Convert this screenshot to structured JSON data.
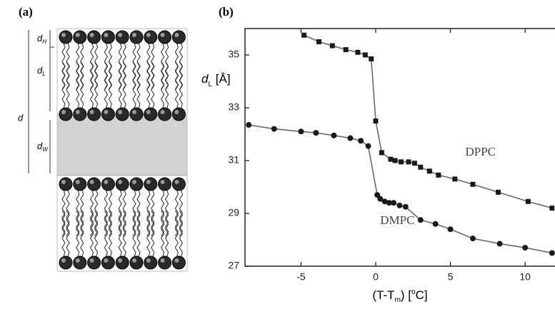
{
  "panel_a": {
    "label": "(a)",
    "d_h": {
      "main": "d",
      "sub": "H"
    },
    "d_l": {
      "main": "d",
      "sub": "L"
    },
    "d": "d",
    "d_w": {
      "main": "d",
      "sub": "W"
    }
  },
  "chart_data": {
    "type": "scatter",
    "panel_label": "(b)",
    "y_label": {
      "main": "d",
      "sub": "L",
      "tail": " [Å]"
    },
    "x_label": {
      "head": "(T-T",
      "sub": "m",
      "mid": ")  [",
      "sup": "o",
      "end": "C]"
    },
    "xlim": [
      -8.75,
      12
    ],
    "ylim": [
      27,
      36
    ],
    "xticks": [
      -5,
      0,
      5,
      10
    ],
    "yticks": [
      27,
      29,
      31,
      33,
      35
    ],
    "annotations": [
      {
        "text": "DPPC",
        "x": 6,
        "y": 31.3
      },
      {
        "text": "DMPC",
        "x": 0.3,
        "y": 28.7
      }
    ],
    "series": [
      {
        "name": "DPPC",
        "marker": "square",
        "color": "#1a1a1a",
        "line_color": "#6a6a6a",
        "x": [
          -4.8,
          -3.8,
          -2.9,
          -2.0,
          -1.2,
          -0.7,
          -0.3,
          0,
          0.4,
          1.0,
          1.3,
          1.7,
          2.2,
          2.6,
          3.0,
          3.6,
          4.2,
          5.3,
          6.5,
          8.2,
          10.2,
          11.8
        ],
        "values": [
          35.75,
          35.5,
          35.35,
          35.2,
          35.1,
          35.0,
          34.85,
          32.5,
          31.3,
          31.05,
          31.0,
          30.95,
          30.95,
          30.9,
          30.75,
          30.6,
          30.45,
          30.3,
          30.1,
          29.8,
          29.45,
          29.2
        ]
      },
      {
        "name": "DMPC",
        "marker": "circle",
        "color": "#1a1a1a",
        "line_color": "#6a6a6a",
        "x": [
          -8.5,
          -6.8,
          -5,
          -4,
          -2.8,
          -1.7,
          -1,
          -0.5,
          0.1,
          0.3,
          0.6,
          0.9,
          1.2,
          1.6,
          2,
          3,
          4,
          5,
          6.5,
          8.3,
          10,
          11.8
        ],
        "values": [
          32.35,
          32.2,
          32.1,
          32.05,
          31.95,
          31.85,
          31.75,
          31.55,
          29.7,
          29.55,
          29.45,
          29.4,
          29.4,
          29.3,
          29.25,
          28.75,
          28.6,
          28.4,
          28.05,
          27.85,
          27.7,
          27.5
        ]
      }
    ]
  }
}
